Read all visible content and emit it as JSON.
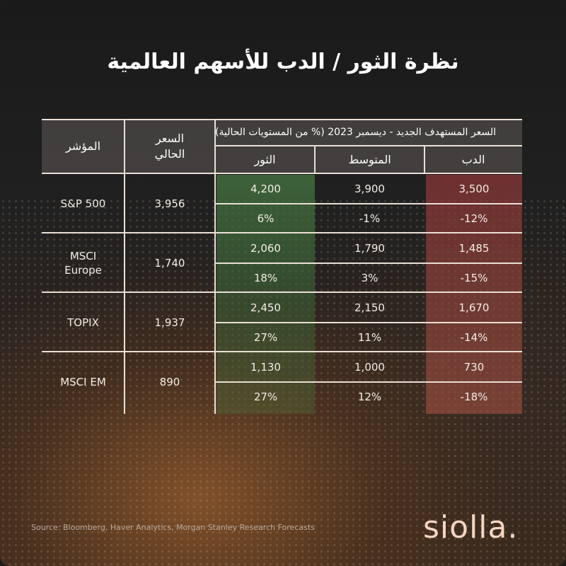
{
  "title": "نظرة الثور / الدب للأسهم العالمية",
  "table": {
    "headers": {
      "index": "المؤشر",
      "current_price": "السعر\nالحالي",
      "target_group": "السعر المستهدف الجديد - ديسمبر 2023 (% من المستويات الحالية)",
      "bull": "الثور",
      "base": "المتوسط",
      "bear": "الدب"
    },
    "rows": [
      {
        "index": "S&P 500",
        "current": "3,956",
        "bull": "4,200",
        "base": "3,900",
        "bear": "3,500",
        "bull_pct": "6%",
        "base_pct": "-1%",
        "bear_pct": "-12%"
      },
      {
        "index": "MSCI\nEurope",
        "current": "1,740",
        "bull": "2,060",
        "base": "1,790",
        "bear": "1,485",
        "bull_pct": "18%",
        "base_pct": "3%",
        "bear_pct": "-15%"
      },
      {
        "index": "TOPIX",
        "current": "1,937",
        "bull": "2,450",
        "base": "2,150",
        "bear": "1,670",
        "bull_pct": "27%",
        "base_pct": "11%",
        "bear_pct": "-14%"
      },
      {
        "index": "MSCI EM",
        "current": "890",
        "bull": "1,130",
        "base": "1,000",
        "bear": "730",
        "bull_pct": "27%",
        "base_pct": "12%",
        "bear_pct": "-18%"
      }
    ]
  },
  "source": "Source: Bloomberg, Haver Analytics, Morgan Stanley Research Forecasts",
  "logo": "siolla.",
  "colors": {
    "bull": "#3f6e3c",
    "bear": "#8c3a3a",
    "logo": "#f6d6c2"
  }
}
